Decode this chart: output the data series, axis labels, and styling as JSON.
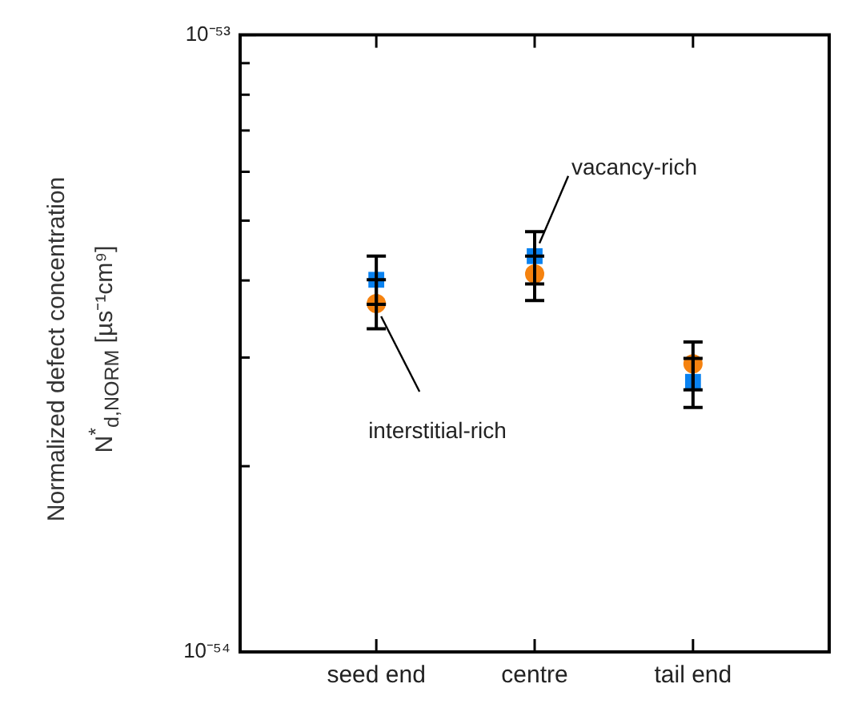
{
  "chart_data": {
    "type": "scatter",
    "ylabel": "Normalized defect concentration N$^{*}$$_{d,NORM}$ [µs⁻¹cm⁹]",
    "categories": [
      "seed end",
      "centre",
      "tail end"
    ],
    "log": "y",
    "ylim": [
      1e-54,
      1e-53
    ],
    "yticks": [
      {
        "value": 1e-54,
        "label": "10⁻⁵⁴"
      },
      {
        "value": 2e-54,
        "label": null
      },
      {
        "value": 3e-54,
        "label": null
      },
      {
        "value": 4e-54,
        "label": null
      },
      {
        "value": 5e-54,
        "label": null
      },
      {
        "value": 6e-54,
        "label": null
      },
      {
        "value": 7e-54,
        "label": null
      },
      {
        "value": 8e-54,
        "label": null
      },
      {
        "value": 9e-54,
        "label": null
      },
      {
        "value": 1e-53,
        "label": "10⁻⁵³"
      }
    ],
    "grid": false,
    "legend": false,
    "series": [
      {
        "name": "interstitial-rich",
        "color": "#f5820f",
        "marker": "circle",
        "values": [
          3.67e-54,
          4.1e-54,
          2.93e-54
        ],
        "errors": [
          [
            3.34e-54,
            4.01e-54
          ],
          [
            3.71e-54,
            4.38e-54
          ],
          [
            2.66e-54,
            3.18e-54
          ]
        ]
      },
      {
        "name": "vacancy-rich",
        "color": "#0a82f0",
        "marker": "square",
        "values": [
          4.01e-54,
          4.38e-54,
          2.74e-54
        ],
        "errors": [
          [
            3.66e-54,
            4.38e-54
          ],
          [
            3.95e-54,
            4.8e-54
          ],
          [
            2.49e-54,
            2.99e-54
          ]
        ]
      }
    ]
  }
}
